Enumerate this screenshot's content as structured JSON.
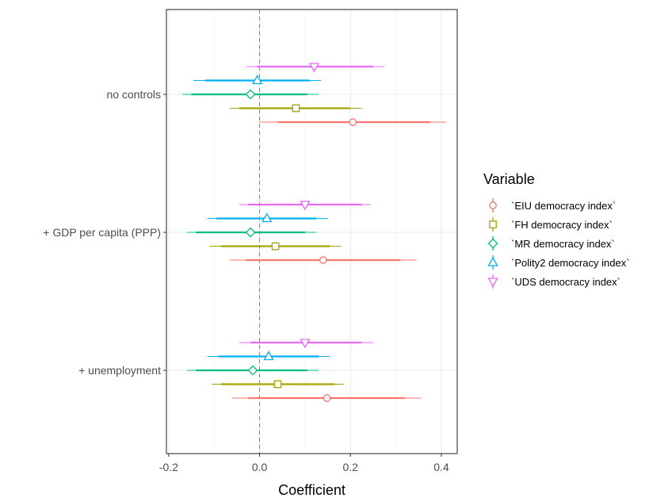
{
  "chart_data": {
    "type": "scatter",
    "subtype": "coefficient-plot",
    "xlabel": "Coefficient",
    "ylabel": "",
    "xlim": [
      -0.205,
      0.435
    ],
    "xticks": [
      -0.2,
      0.0,
      0.2,
      0.4
    ],
    "xtick_labels": [
      "-0.2",
      "0.0",
      "0.2",
      "0.4"
    ],
    "reference_line": 0,
    "grid": true,
    "legend_title": "Variable",
    "legend_position": "right",
    "categories": [
      "no controls",
      "+ GDP per capita (PPP)",
      "+ unemployment"
    ],
    "series": [
      {
        "name": "`EIU democracy index`",
        "color": "#F8766D",
        "marker": "circle",
        "points": [
          {
            "category": "no controls",
            "estimate": 0.205,
            "ci90": [
              0.04,
              0.375
            ],
            "ci95": [
              0.0,
              0.41
            ]
          },
          {
            "category": "+ GDP per capita (PPP)",
            "estimate": 0.14,
            "ci90": [
              -0.03,
              0.31
            ],
            "ci95": [
              -0.065,
              0.345
            ]
          },
          {
            "category": "+ unemployment",
            "estimate": 0.148,
            "ci90": [
              -0.025,
              0.32
            ],
            "ci95": [
              -0.06,
              0.355
            ]
          }
        ]
      },
      {
        "name": "`FH democracy index`",
        "color": "#A3A500",
        "marker": "square",
        "points": [
          {
            "category": "no controls",
            "estimate": 0.08,
            "ci90": [
              -0.045,
              0.2
            ],
            "ci95": [
              -0.065,
              0.225
            ]
          },
          {
            "category": "+ GDP per capita (PPP)",
            "estimate": 0.035,
            "ci90": [
              -0.085,
              0.155
            ],
            "ci95": [
              -0.11,
              0.18
            ]
          },
          {
            "category": "+ unemployment",
            "estimate": 0.04,
            "ci90": [
              -0.085,
              0.165
            ],
            "ci95": [
              -0.105,
              0.185
            ]
          }
        ]
      },
      {
        "name": "`MR democracy index`",
        "color": "#00BF7D",
        "marker": "diamond",
        "points": [
          {
            "category": "no controls",
            "estimate": -0.02,
            "ci90": [
              -0.15,
              0.105
            ],
            "ci95": [
              -0.17,
              0.13
            ]
          },
          {
            "category": "+ GDP per capita (PPP)",
            "estimate": -0.02,
            "ci90": [
              -0.14,
              0.1
            ],
            "ci95": [
              -0.16,
              0.125
            ]
          },
          {
            "category": "+ unemployment",
            "estimate": -0.015,
            "ci90": [
              -0.14,
              0.105
            ],
            "ci95": [
              -0.16,
              0.13
            ]
          }
        ]
      },
      {
        "name": "`Polity2 democracy index`",
        "color": "#00B0F6",
        "marker": "triangle-up",
        "points": [
          {
            "category": "no controls",
            "estimate": -0.005,
            "ci90": [
              -0.12,
              0.11
            ],
            "ci95": [
              -0.145,
              0.135
            ]
          },
          {
            "category": "+ GDP per capita (PPP)",
            "estimate": 0.016,
            "ci90": [
              -0.095,
              0.125
            ],
            "ci95": [
              -0.115,
              0.15
            ]
          },
          {
            "category": "+ unemployment",
            "estimate": 0.02,
            "ci90": [
              -0.09,
              0.13
            ],
            "ci95": [
              -0.115,
              0.155
            ]
          }
        ]
      },
      {
        "name": "`UDS democracy index`",
        "color": "#E76BF3",
        "marker": "triangle-down",
        "points": [
          {
            "category": "no controls",
            "estimate": 0.12,
            "ci90": [
              -0.005,
              0.25
            ],
            "ci95": [
              -0.03,
              0.275
            ]
          },
          {
            "category": "+ GDP per capita (PPP)",
            "estimate": 0.1,
            "ci90": [
              -0.025,
              0.225
            ],
            "ci95": [
              -0.045,
              0.245
            ]
          },
          {
            "category": "+ unemployment",
            "estimate": 0.1,
            "ci90": [
              -0.02,
              0.225
            ],
            "ci95": [
              -0.045,
              0.25
            ]
          }
        ]
      }
    ]
  }
}
